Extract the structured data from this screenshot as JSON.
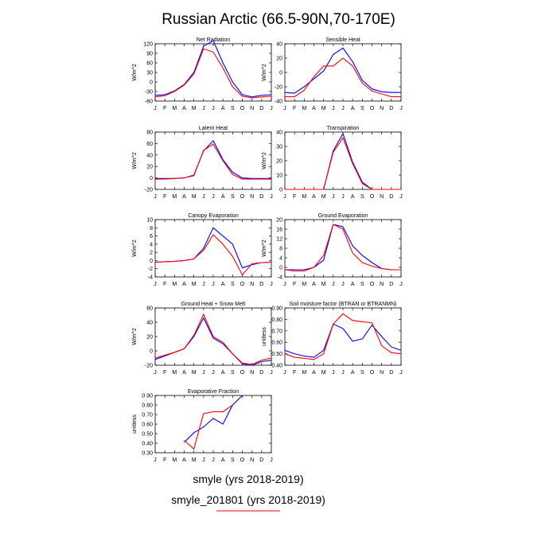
{
  "title": "Russian Arctic (66.5-90N,70-170E)",
  "colors": {
    "series1": "#0000ff",
    "series2": "#ff0000"
  },
  "legend": {
    "entries": [
      {
        "label": "smyle (yrs 2018-2019)",
        "color": "#0000ff"
      },
      {
        "label": "smyle_201801 (yrs 2018-2019)",
        "color": "#ff0000"
      }
    ]
  },
  "chart_data": [
    {
      "type": "line",
      "title": "Net Radiation",
      "ylabel": "W/m^2",
      "x": [
        "J",
        "F",
        "M",
        "A",
        "M",
        "J",
        "J",
        "A",
        "S",
        "O",
        "N",
        "D",
        "J"
      ],
      "ylim": [
        -60,
        120
      ],
      "yticks": [
        -60,
        -30,
        0,
        30,
        60,
        90,
        120
      ],
      "series": [
        {
          "values": [
            -42,
            -40,
            -28,
            -8,
            30,
            112,
            130,
            60,
            0,
            -40,
            -47,
            -42,
            -40
          ]
        },
        {
          "values": [
            -47,
            -43,
            -30,
            -10,
            25,
            104,
            94,
            44,
            -15,
            -45,
            -50,
            -47,
            -45
          ]
        }
      ]
    },
    {
      "type": "line",
      "title": "Sensible Heat",
      "ylabel": "W/m^2",
      "x": [
        "J",
        "F",
        "M",
        "A",
        "M",
        "J",
        "J",
        "A",
        "S",
        "O",
        "N",
        "D",
        "J"
      ],
      "ylim": [
        -40,
        40
      ],
      "yticks": [
        -40,
        -20,
        0,
        20,
        40
      ],
      "series": [
        {
          "values": [
            -28,
            -29,
            -20,
            -9,
            2,
            25,
            34,
            15,
            -11,
            -23,
            -27,
            -28,
            -28
          ]
        },
        {
          "values": [
            -34,
            -34,
            -25,
            -6,
            9,
            9,
            20,
            9,
            -15,
            -26,
            -30,
            -34,
            -34
          ]
        }
      ]
    },
    {
      "type": "line",
      "title": "Latent Heat",
      "ylabel": "W/m^2",
      "x": [
        "J",
        "F",
        "M",
        "A",
        "M",
        "J",
        "J",
        "A",
        "S",
        "O",
        "N",
        "D",
        "J"
      ],
      "ylim": [
        -20,
        80
      ],
      "yticks": [
        -20,
        0,
        20,
        40,
        60,
        80
      ],
      "series": [
        {
          "values": [
            -1,
            -1,
            -1,
            0,
            5,
            47,
            65,
            32,
            10,
            0,
            -1,
            -1,
            -1
          ]
        },
        {
          "values": [
            -2,
            -2,
            -1,
            0,
            4,
            48,
            59,
            30,
            6,
            -2,
            -2,
            -2,
            -2
          ]
        }
      ]
    },
    {
      "type": "line",
      "title": "Transpiration",
      "ylabel": "W/m^2",
      "x": [
        "J",
        "F",
        "M",
        "A",
        "M",
        "J",
        "J",
        "A",
        "S",
        "O",
        "N",
        "D",
        "J"
      ],
      "ylim": [
        0,
        40
      ],
      "yticks": [
        0,
        10,
        20,
        30,
        40
      ],
      "series": [
        {
          "values": [
            0,
            0,
            0,
            0,
            0,
            27,
            39,
            19,
            5,
            0,
            0,
            0,
            0
          ]
        },
        {
          "values": [
            0,
            0,
            0,
            0,
            0,
            26,
            36,
            18,
            4,
            0,
            0,
            0,
            0
          ]
        }
      ]
    },
    {
      "type": "line",
      "title": "Canopy Evaporation",
      "ylabel": "W/m^2",
      "x": [
        "J",
        "F",
        "M",
        "A",
        "M",
        "J",
        "J",
        "A",
        "S",
        "O",
        "N",
        "D",
        "J"
      ],
      "ylim": [
        -4,
        10
      ],
      "yticks": [
        -4,
        -2,
        0,
        2,
        4,
        6,
        8,
        10
      ],
      "series": [
        {
          "values": [
            -0.4,
            -0.3,
            -0.2,
            0,
            0.4,
            3,
            8,
            6,
            4,
            -1.8,
            -1,
            -0.5,
            -0.4
          ]
        },
        {
          "values": [
            -0.4,
            -0.3,
            -0.2,
            0,
            0.4,
            2.5,
            6.3,
            4,
            1,
            -3.5,
            -0.8,
            -0.5,
            -0.4
          ]
        }
      ]
    },
    {
      "type": "line",
      "title": "Ground Evaporation",
      "ylabel": "W/m^2",
      "x": [
        "J",
        "F",
        "M",
        "A",
        "M",
        "J",
        "J",
        "A",
        "S",
        "O",
        "N",
        "D",
        "J"
      ],
      "ylim": [
        -4,
        20
      ],
      "yticks": [
        -4,
        0,
        4,
        8,
        12,
        16,
        20
      ],
      "series": [
        {
          "values": [
            -1,
            -1,
            -1,
            0,
            3,
            18,
            17,
            9,
            5,
            2,
            -0.5,
            -1,
            -1
          ]
        },
        {
          "values": [
            -1,
            -1.5,
            -1.5,
            0,
            5,
            18,
            16,
            6,
            2,
            0.5,
            -0.5,
            -1,
            -1
          ]
        }
      ]
    },
    {
      "type": "line",
      "title": "Ground Heat + Snow Melt",
      "ylabel": "W/m^2",
      "x": [
        "J",
        "F",
        "M",
        "A",
        "M",
        "J",
        "J",
        "A",
        "S",
        "O",
        "N",
        "D",
        "J"
      ],
      "ylim": [
        -20,
        60
      ],
      "yticks": [
        -20,
        0,
        20,
        40,
        60
      ],
      "series": [
        {
          "values": [
            -12,
            -7,
            -2,
            3,
            20,
            46,
            18,
            10,
            -4,
            -18,
            -20,
            -15,
            -13
          ]
        },
        {
          "values": [
            -10,
            -6,
            -2,
            3,
            22,
            51,
            20,
            12,
            -4,
            -17,
            -19,
            -13,
            -10
          ]
        }
      ]
    },
    {
      "type": "line",
      "title": "Soil moisture factor (BTRAN or BTRANMN)",
      "ylabel": "unitless",
      "x": [
        "J",
        "F",
        "M",
        "A",
        "M",
        "J",
        "J",
        "A",
        "S",
        "O",
        "N",
        "D",
        "J"
      ],
      "ylim": [
        0.4,
        0.9
      ],
      "yticks": [
        0.4,
        0.5,
        0.6,
        0.7,
        0.8,
        0.9
      ],
      "series": [
        {
          "values": [
            0.53,
            0.5,
            0.48,
            0.47,
            0.53,
            0.76,
            0.72,
            0.61,
            0.63,
            0.75,
            0.65,
            0.56,
            0.53
          ]
        },
        {
          "values": [
            0.5,
            0.47,
            0.46,
            0.45,
            0.5,
            0.76,
            0.85,
            0.79,
            0.78,
            0.77,
            0.57,
            0.51,
            0.5
          ]
        }
      ]
    },
    {
      "type": "line",
      "title": "Evaporative Fraction",
      "ylabel": "unitless",
      "x": [
        "J",
        "F",
        "M",
        "A",
        "M",
        "J",
        "J",
        "A",
        "S",
        "O",
        "N",
        "D",
        "J"
      ],
      "ylim": [
        0.3,
        0.9
      ],
      "yticks": [
        0.3,
        0.4,
        0.5,
        0.6,
        0.7,
        0.8,
        0.9
      ],
      "series": [
        {
          "values": [
            null,
            null,
            null,
            0.41,
            0.51,
            0.57,
            0.66,
            0.6,
            0.8,
            0.9,
            null,
            null,
            null
          ]
        },
        {
          "values": [
            null,
            null,
            null,
            0.43,
            0.34,
            0.71,
            0.73,
            0.73,
            0.8,
            null,
            null,
            null,
            null
          ]
        }
      ]
    }
  ]
}
